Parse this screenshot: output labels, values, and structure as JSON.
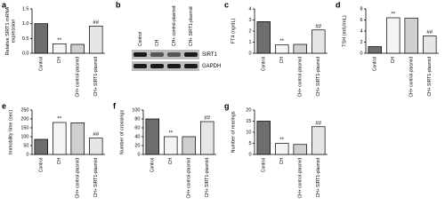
{
  "chart_data": [
    {
      "type": "bar",
      "panel": "a",
      "ylabel": "Relative SIRT1 mRNA\nexpression",
      "categories": [
        "Control",
        "CH",
        "CH+ control-plasmid",
        "CH+ SIRT1-plasmid"
      ],
      "values": [
        1.0,
        0.32,
        0.3,
        0.92
      ],
      "annotations": [
        null,
        "**",
        null,
        "##"
      ],
      "colors": [
        "#6e6e6e",
        "#f4f4f4",
        "#cfcfcf",
        "#e6e6e6"
      ],
      "ylim": [
        0,
        1.5
      ],
      "yticks": [
        {
          "value": 0,
          "label": "0.0"
        },
        {
          "value": 0.5,
          "label": "0.5"
        },
        {
          "value": 1,
          "label": "1.0"
        },
        {
          "value": 1.5,
          "label": "1.5"
        }
      ]
    },
    {
      "type": "blot",
      "panel": "b",
      "categories": [
        "Control",
        "CH",
        "CH+ control-plasmid",
        "CH+ SIRT1-plasmid"
      ],
      "rows": [
        "SIRT1",
        "GAPDH"
      ]
    },
    {
      "type": "bar",
      "panel": "c",
      "ylabel": "FT4 (ng/dL)",
      "categories": [
        "Control",
        "CH",
        "CH+ control-plasmid",
        "CH+ SIRT1-plasmid"
      ],
      "values": [
        2.85,
        0.75,
        0.8,
        2.1
      ],
      "annotations": [
        null,
        "**",
        null,
        "##"
      ],
      "colors": [
        "#6e6e6e",
        "#f4f4f4",
        "#cfcfcf",
        "#e6e6e6"
      ],
      "ylim": [
        0,
        4
      ],
      "yticks": [
        0,
        1,
        2,
        3,
        4
      ]
    },
    {
      "type": "bar",
      "panel": "d",
      "ylabel": "TSH (mIU/mL)",
      "categories": [
        "Control",
        "CH",
        "CH+ control-plasmid",
        "CH+ SIRT1-plasmid"
      ],
      "values": [
        1.2,
        6.4,
        6.3,
        3.1
      ],
      "annotations": [
        null,
        "**",
        null,
        "##"
      ],
      "colors": [
        "#6e6e6e",
        "#f4f4f4",
        "#cfcfcf",
        "#e6e6e6"
      ],
      "ylim": [
        0,
        8
      ],
      "yticks": [
        0,
        2,
        4,
        6,
        8
      ]
    },
    {
      "type": "bar",
      "panel": "e",
      "ylabel": "Immobility time (sec)",
      "categories": [
        "Control",
        "CH",
        "CH+ control-plasmid",
        "CH+ SIRT1-plasmid"
      ],
      "values": [
        85,
        180,
        178,
        92
      ],
      "annotations": [
        null,
        "**",
        null,
        "##"
      ],
      "colors": [
        "#6e6e6e",
        "#f4f4f4",
        "#cfcfcf",
        "#e6e6e6"
      ],
      "ylim": [
        0,
        250
      ],
      "yticks": [
        0,
        50,
        100,
        150,
        200,
        250
      ]
    },
    {
      "type": "bar",
      "panel": "f",
      "ylabel": "Number of crossings",
      "categories": [
        "Control",
        "CH",
        "CH+ control-plasmid",
        "CH+ SIRT1-plasmid"
      ],
      "values": [
        80,
        40,
        40,
        74
      ],
      "annotations": [
        null,
        "**",
        null,
        "##"
      ],
      "colors": [
        "#6e6e6e",
        "#f4f4f4",
        "#cfcfcf",
        "#e6e6e6"
      ],
      "ylim": [
        0,
        100
      ],
      "yticks": [
        0,
        20,
        40,
        60,
        80,
        100
      ]
    },
    {
      "type": "bar",
      "panel": "g",
      "ylabel": "Number of rearings",
      "categories": [
        "Control",
        "CH",
        "CH+ control-plasmid",
        "CH+ SIRT1-plasmid"
      ],
      "values": [
        15,
        5,
        4.5,
        12.5
      ],
      "annotations": [
        null,
        "**",
        null,
        "##"
      ],
      "colors": [
        "#6e6e6e",
        "#f4f4f4",
        "#cfcfcf",
        "#e6e6e6"
      ],
      "ylim": [
        0,
        20
      ],
      "yticks": [
        0,
        5,
        10,
        15,
        20
      ]
    }
  ]
}
